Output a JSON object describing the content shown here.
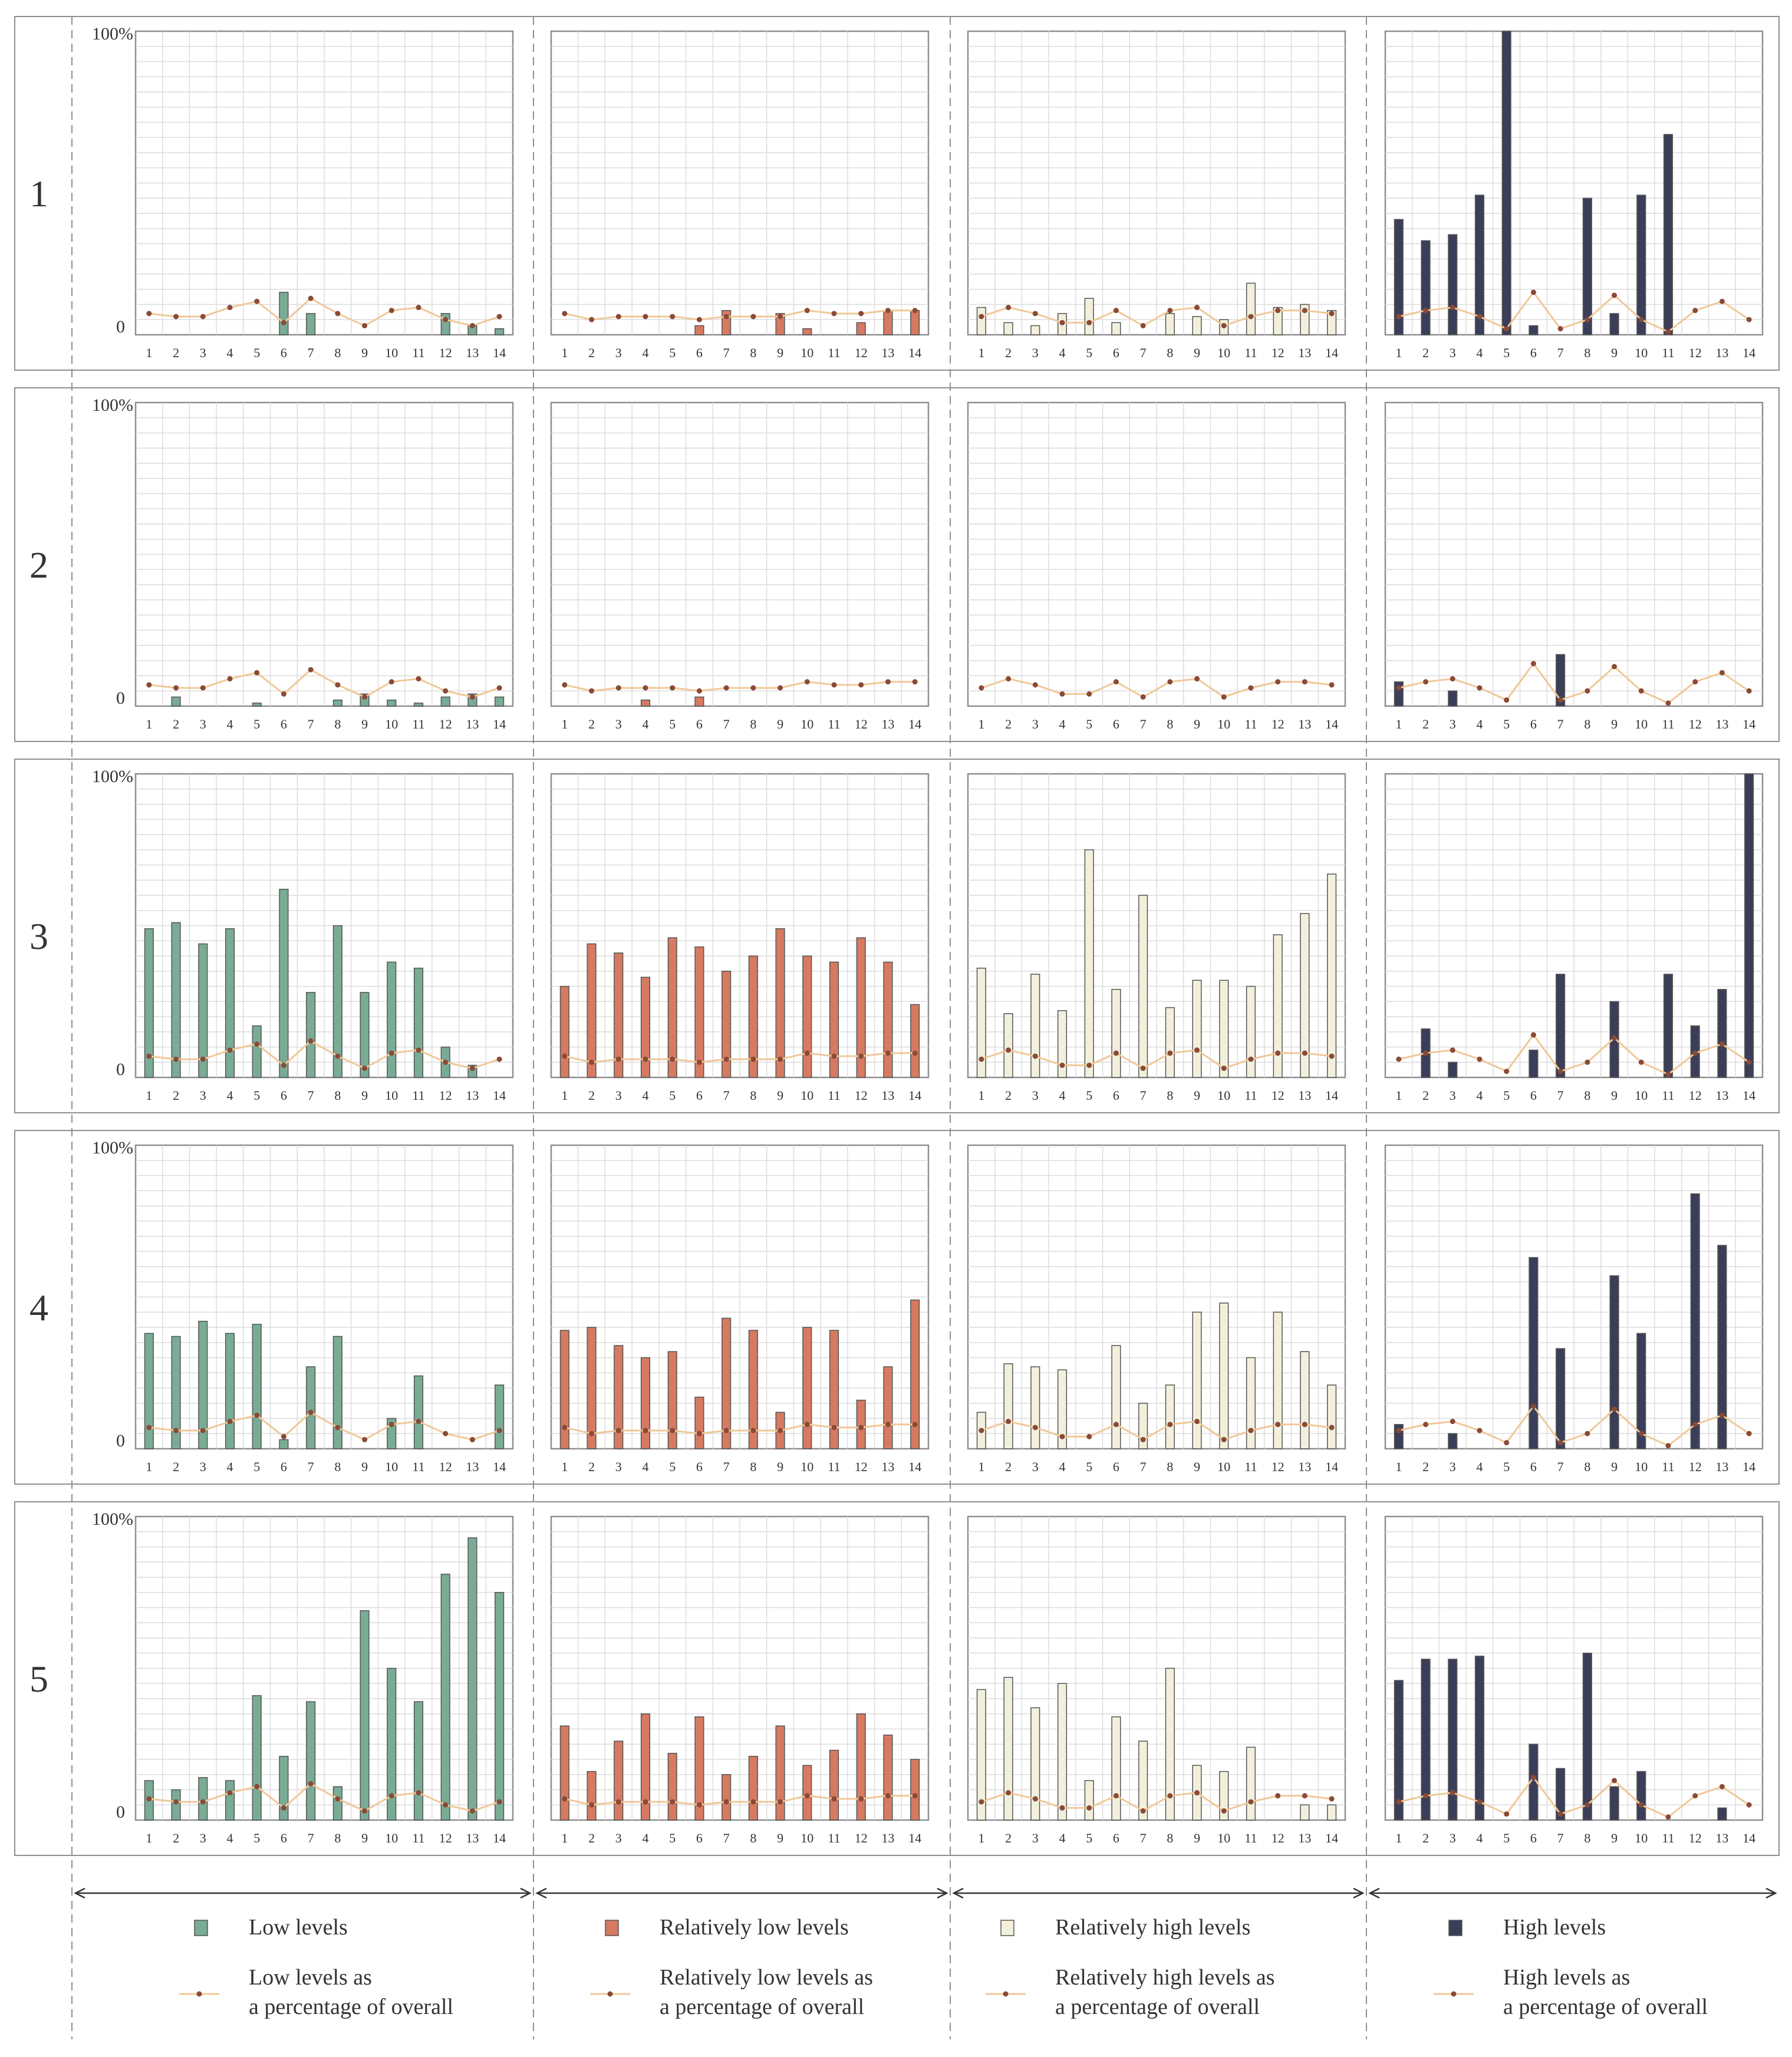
{
  "figure": {
    "x_categories": [
      "1",
      "2",
      "3",
      "4",
      "5",
      "6",
      "7",
      "8",
      "9",
      "10",
      "11",
      "12",
      "13",
      "14"
    ],
    "y_top_label": "100%",
    "y_zero_label": "0",
    "row_labels": [
      "1",
      "2",
      "3",
      "4",
      "5"
    ]
  },
  "colors": {
    "low": "#7aab95",
    "rel_low": "#d67a62",
    "rel_high": "#f2f0dc",
    "high": "#3b3e58",
    "line": "#f0c898",
    "dot": "#8a4a36",
    "grid": "#dcdcdc",
    "frame": "#8f8f8f",
    "dashed": "#8f8f8f"
  },
  "legend": [
    {
      "key": "low",
      "bar_label": "Low levels",
      "line_label_1": "Low levels as",
      "line_label_2": "a percentage of overall"
    },
    {
      "key": "rel_low",
      "bar_label": "Relatively low levels",
      "line_label_1": "Relatively low levels as",
      "line_label_2": "a percentage of overall"
    },
    {
      "key": "rel_high",
      "bar_label": "Relatively high levels",
      "line_label_1": "Relatively high levels as",
      "line_label_2": "a percentage of overall"
    },
    {
      "key": "high",
      "bar_label": "High levels",
      "line_label_1": "High levels as",
      "line_label_2": "a percentage of overall"
    }
  ],
  "chart_data": [
    {
      "type": "bar",
      "row": "1",
      "series": "Low levels",
      "key": "low",
      "ylim": [
        0,
        100
      ],
      "xlabel": "",
      "ylabel": "",
      "values": [
        0,
        0,
        0,
        0,
        0,
        14,
        7,
        0,
        0,
        0,
        0,
        7,
        3,
        2
      ],
      "line": [
        7,
        6,
        6,
        9,
        11,
        4,
        12,
        7,
        3,
        8,
        9,
        5,
        3,
        6
      ]
    },
    {
      "type": "bar",
      "row": "1",
      "series": "Relatively low levels",
      "key": "rel_low",
      "ylim": [
        0,
        100
      ],
      "xlabel": "",
      "ylabel": "",
      "values": [
        0,
        0,
        0,
        0,
        0,
        3,
        8,
        0,
        7,
        2,
        0,
        4,
        8,
        8
      ],
      "line": [
        7,
        5,
        6,
        6,
        6,
        5,
        6,
        6,
        6,
        8,
        7,
        7,
        8,
        8
      ]
    },
    {
      "type": "bar",
      "row": "1",
      "series": "Relatively high levels",
      "key": "rel_high",
      "ylim": [
        0,
        100
      ],
      "xlabel": "",
      "ylabel": "",
      "values": [
        9,
        4,
        3,
        7,
        12,
        4,
        0,
        7,
        6,
        5,
        17,
        9,
        10,
        8
      ],
      "line": [
        6,
        9,
        7,
        4,
        4,
        8,
        3,
        8,
        9,
        3,
        6,
        8,
        8,
        7
      ]
    },
    {
      "type": "bar",
      "row": "1",
      "series": "High levels",
      "key": "high",
      "ylim": [
        0,
        100
      ],
      "xlabel": "",
      "ylabel": "",
      "values": [
        38,
        31,
        33,
        46,
        100,
        3,
        0,
        45,
        7,
        46,
        66,
        0,
        0,
        0
      ],
      "line": [
        6,
        8,
        9,
        6,
        2,
        14,
        2,
        5,
        13,
        5,
        1,
        8,
        11,
        5
      ]
    },
    {
      "type": "bar",
      "row": "2",
      "series": "Low levels",
      "key": "low",
      "ylim": [
        0,
        100
      ],
      "xlabel": "",
      "ylabel": "",
      "values": [
        0,
        3,
        0,
        0,
        1,
        0,
        0,
        2,
        4,
        2,
        1,
        3,
        4,
        3
      ],
      "line": [
        7,
        6,
        6,
        9,
        11,
        4,
        12,
        7,
        3,
        8,
        9,
        5,
        3,
        6
      ]
    },
    {
      "type": "bar",
      "row": "2",
      "series": "Relatively low levels",
      "key": "rel_low",
      "ylim": [
        0,
        100
      ],
      "xlabel": "",
      "ylabel": "",
      "values": [
        0,
        0,
        0,
        2,
        0,
        3,
        0,
        0,
        0,
        0,
        0,
        0,
        0,
        0
      ],
      "line": [
        7,
        5,
        6,
        6,
        6,
        5,
        6,
        6,
        6,
        8,
        7,
        7,
        8,
        8
      ]
    },
    {
      "type": "bar",
      "row": "2",
      "series": "Relatively high levels",
      "key": "rel_high",
      "ylim": [
        0,
        100
      ],
      "xlabel": "",
      "ylabel": "",
      "values": [
        0,
        0,
        0,
        0,
        0,
        0,
        0,
        0,
        0,
        0,
        0,
        0,
        0,
        0
      ],
      "line": [
        6,
        9,
        7,
        4,
        4,
        8,
        3,
        8,
        9,
        3,
        6,
        8,
        8,
        7
      ]
    },
    {
      "type": "bar",
      "row": "2",
      "series": "High levels",
      "key": "high",
      "ylim": [
        0,
        100
      ],
      "xlabel": "",
      "ylabel": "",
      "values": [
        8,
        0,
        5,
        0,
        0,
        0,
        17,
        0,
        0,
        0,
        0,
        0,
        0,
        0
      ],
      "line": [
        6,
        8,
        9,
        6,
        2,
        14,
        2,
        5,
        13,
        5,
        1,
        8,
        11,
        5
      ]
    },
    {
      "type": "bar",
      "row": "3",
      "series": "Low levels",
      "key": "low",
      "ylim": [
        0,
        100
      ],
      "xlabel": "",
      "ylabel": "",
      "values": [
        49,
        51,
        44,
        49,
        17,
        62,
        28,
        50,
        28,
        38,
        36,
        10,
        4,
        0
      ],
      "line": [
        7,
        6,
        6,
        9,
        11,
        4,
        12,
        7,
        3,
        8,
        9,
        5,
        3,
        6
      ]
    },
    {
      "type": "bar",
      "row": "3",
      "series": "Relatively low levels",
      "key": "rel_low",
      "ylim": [
        0,
        100
      ],
      "xlabel": "",
      "ylabel": "",
      "values": [
        30,
        44,
        41,
        33,
        46,
        43,
        35,
        40,
        49,
        40,
        38,
        46,
        38,
        24
      ],
      "line": [
        7,
        5,
        6,
        6,
        6,
        5,
        6,
        6,
        6,
        8,
        7,
        7,
        8,
        8
      ]
    },
    {
      "type": "bar",
      "row": "3",
      "series": "Relatively high levels",
      "key": "rel_high",
      "ylim": [
        0,
        100
      ],
      "xlabel": "",
      "ylabel": "",
      "values": [
        36,
        21,
        34,
        22,
        75,
        29,
        60,
        23,
        32,
        32,
        30,
        47,
        54,
        67
      ],
      "line": [
        6,
        9,
        7,
        4,
        4,
        8,
        3,
        8,
        9,
        3,
        6,
        8,
        8,
        7
      ]
    },
    {
      "type": "bar",
      "row": "3",
      "series": "High levels",
      "key": "high",
      "ylim": [
        0,
        100
      ],
      "xlabel": "",
      "ylabel": "",
      "values": [
        0,
        16,
        5,
        0,
        0,
        9,
        34,
        0,
        25,
        0,
        34,
        17,
        29,
        100
      ],
      "line": [
        6,
        8,
        9,
        6,
        2,
        14,
        2,
        5,
        13,
        5,
        1,
        8,
        11,
        5
      ]
    },
    {
      "type": "bar",
      "row": "4",
      "series": "Low levels",
      "key": "low",
      "ylim": [
        0,
        100
      ],
      "xlabel": "",
      "ylabel": "",
      "values": [
        38,
        37,
        42,
        38,
        41,
        3,
        27,
        37,
        0,
        10,
        24,
        0,
        0,
        21
      ],
      "line": [
        7,
        6,
        6,
        9,
        11,
        4,
        12,
        7,
        3,
        8,
        9,
        5,
        3,
        6
      ]
    },
    {
      "type": "bar",
      "row": "4",
      "series": "Relatively low levels",
      "key": "rel_low",
      "ylim": [
        0,
        100
      ],
      "xlabel": "",
      "ylabel": "",
      "values": [
        39,
        40,
        34,
        30,
        32,
        17,
        43,
        39,
        12,
        40,
        39,
        16,
        27,
        49
      ],
      "line": [
        7,
        5,
        6,
        6,
        6,
        5,
        6,
        6,
        6,
        8,
        7,
        7,
        8,
        8
      ]
    },
    {
      "type": "bar",
      "row": "4",
      "series": "Relatively high levels",
      "key": "rel_high",
      "ylim": [
        0,
        100
      ],
      "xlabel": "",
      "ylabel": "",
      "values": [
        12,
        28,
        27,
        26,
        0,
        34,
        15,
        21,
        45,
        48,
        30,
        45,
        32,
        21
      ],
      "line": [
        6,
        9,
        7,
        4,
        4,
        8,
        3,
        8,
        9,
        3,
        6,
        8,
        8,
        7
      ]
    },
    {
      "type": "bar",
      "row": "4",
      "series": "High levels",
      "key": "high",
      "ylim": [
        0,
        100
      ],
      "xlabel": "",
      "ylabel": "",
      "values": [
        8,
        0,
        5,
        0,
        0,
        63,
        33,
        0,
        57,
        38,
        0,
        84,
        67,
        0
      ],
      "line": [
        6,
        8,
        9,
        6,
        2,
        14,
        2,
        5,
        13,
        5,
        1,
        8,
        11,
        5
      ]
    },
    {
      "type": "bar",
      "row": "5",
      "series": "Low levels",
      "key": "low",
      "ylim": [
        0,
        100
      ],
      "xlabel": "",
      "ylabel": "",
      "values": [
        13,
        10,
        14,
        13,
        41,
        21,
        39,
        11,
        69,
        50,
        39,
        81,
        93,
        75
      ],
      "line": [
        7,
        6,
        6,
        9,
        11,
        4,
        12,
        7,
        3,
        8,
        9,
        5,
        3,
        6
      ]
    },
    {
      "type": "bar",
      "row": "5",
      "series": "Relatively low levels",
      "key": "rel_low",
      "ylim": [
        0,
        100
      ],
      "xlabel": "",
      "ylabel": "",
      "values": [
        31,
        16,
        26,
        35,
        22,
        34,
        15,
        21,
        31,
        18,
        23,
        35,
        28,
        20
      ],
      "line": [
        7,
        5,
        6,
        6,
        6,
        5,
        6,
        6,
        6,
        8,
        7,
        7,
        8,
        8
      ]
    },
    {
      "type": "bar",
      "row": "5",
      "series": "Relatively high levels",
      "key": "rel_high",
      "ylim": [
        0,
        100
      ],
      "xlabel": "",
      "ylabel": "",
      "values": [
        43,
        47,
        37,
        45,
        13,
        34,
        26,
        50,
        18,
        16,
        24,
        0,
        5,
        5
      ],
      "line": [
        6,
        9,
        7,
        4,
        4,
        8,
        3,
        8,
        9,
        3,
        6,
        8,
        8,
        7
      ]
    },
    {
      "type": "bar",
      "row": "5",
      "series": "High levels",
      "key": "high",
      "ylim": [
        0,
        100
      ],
      "xlabel": "",
      "ylabel": "",
      "values": [
        46,
        53,
        53,
        54,
        0,
        25,
        17,
        55,
        11,
        16,
        0,
        0,
        4,
        0
      ],
      "line": [
        6,
        8,
        9,
        6,
        2,
        14,
        2,
        5,
        13,
        5,
        1,
        8,
        11,
        5
      ]
    }
  ]
}
